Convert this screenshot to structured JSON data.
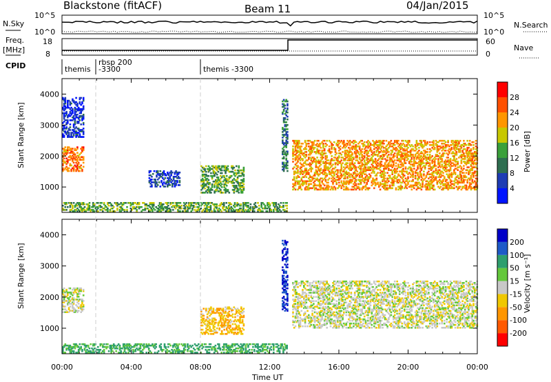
{
  "header": {
    "station": "Blackstone (fitACF)",
    "beam": "Beam 11",
    "date": "04/Jan/2015"
  },
  "top_panels": {
    "nsky_label": "N.Sky",
    "nsky_ticks": [
      "10^5",
      "10^0"
    ],
    "nsearch_label": "N.Search",
    "nsearch_ticks": [
      "10^5",
      "10^0"
    ],
    "freq_label": "Freq.",
    "freq_unit": "[MHz]",
    "freq_ticks": [
      "18",
      "8"
    ],
    "nave_label": "Nave",
    "nave_ticks": [
      "60",
      "0"
    ],
    "cpid_label": "CPID",
    "cpid_segments": [
      {
        "start_hr": 0.0,
        "label": "themis"
      },
      {
        "start_hr": 1.8,
        "label": "rbsp 200\n-3300"
      },
      {
        "start_hr": 7.9,
        "label": "themis -3300"
      }
    ]
  },
  "x_axis": {
    "label": "Time UT",
    "range_hr": [
      0,
      24
    ],
    "tick_labels": [
      "00:00",
      "04:00",
      "08:00",
      "12:00",
      "16:00",
      "20:00",
      "00:00"
    ],
    "tick_values_hr": [
      0,
      4,
      8,
      12,
      16,
      20,
      24
    ]
  },
  "y_axis": {
    "label": "Slant Range [km]",
    "range_km": [
      180,
      4500
    ],
    "tick_values": [
      1000,
      2000,
      3000,
      4000
    ]
  },
  "colorbars": {
    "power": {
      "label": "Power [dB]",
      "ticks": [
        "4",
        "8",
        "12",
        "16",
        "20",
        "24",
        "28"
      ],
      "colors": [
        "#0014ff",
        "#1e3cb4",
        "#2e6e50",
        "#3aa03a",
        "#c8c800",
        "#ff9600",
        "#ff5000",
        "#ff0000"
      ]
    },
    "velocity": {
      "label": "Velocity [m s⁻¹]",
      "ticks": [
        "200",
        "100",
        "50",
        "15",
        "-15",
        "-50",
        "-100",
        "-200"
      ],
      "colors": [
        "#0000c8",
        "#1e5ac8",
        "#2e9f6e",
        "#64c83c",
        "#c8c8c8",
        "#f0c800",
        "#ff9600",
        "#ff5a00",
        "#ff0000"
      ]
    }
  },
  "chart_data": [
    {
      "type": "heatmap",
      "title": "Power",
      "xlabel": "Time UT",
      "ylabel": "Slant Range [km]",
      "xlim_hr": [
        0,
        24
      ],
      "ylim_km": [
        180,
        4500
      ],
      "colorbar_label": "Power [dB]",
      "colorbar_ticks": [
        4,
        8,
        12,
        16,
        20,
        24,
        28
      ],
      "regions": [
        {
          "t0": 0.0,
          "t1": 1.2,
          "r0": 1500,
          "r1": 2300,
          "value_db": 24
        },
        {
          "t0": 0.0,
          "t1": 1.2,
          "r0": 2600,
          "r1": 3900,
          "value_db": 4
        },
        {
          "t0": 0.0,
          "t1": 13.0,
          "r0": 200,
          "r1": 500,
          "value_db": 14
        },
        {
          "t0": 5.0,
          "t1": 6.8,
          "r0": 1000,
          "r1": 1500,
          "value_db": 6
        },
        {
          "t0": 8.0,
          "t1": 10.5,
          "r0": 800,
          "r1": 1700,
          "value_db": 14
        },
        {
          "t0": 12.7,
          "t1": 13.0,
          "r0": 1500,
          "r1": 3800,
          "value_db": 10
        },
        {
          "t0": 13.3,
          "t1": 24.0,
          "r0": 900,
          "r1": 2500,
          "value_db": 22
        }
      ]
    },
    {
      "type": "heatmap",
      "title": "Velocity",
      "xlabel": "Time UT",
      "ylabel": "Slant Range [km]",
      "xlim_hr": [
        0,
        24
      ],
      "ylim_km": [
        180,
        4500
      ],
      "colorbar_label": "Velocity [m s⁻¹]",
      "colorbar_ticks": [
        200,
        100,
        50,
        15,
        -15,
        -50,
        -100,
        -200
      ],
      "regions": [
        {
          "t0": 0.0,
          "t1": 1.2,
          "r0": 1500,
          "r1": 2300,
          "value_ms": 0
        },
        {
          "t0": 0.0,
          "t1": 13.0,
          "r0": 200,
          "r1": 500,
          "value_ms": 60
        },
        {
          "t0": 8.0,
          "t1": 10.5,
          "r0": 800,
          "r1": 1700,
          "value_ms": -40
        },
        {
          "t0": 12.7,
          "t1": 13.0,
          "r0": 1500,
          "r1": 3800,
          "value_ms": 200
        },
        {
          "t0": 13.3,
          "t1": 24.0,
          "r0": 1000,
          "r1": 2500,
          "value_ms": 0
        }
      ]
    }
  ]
}
